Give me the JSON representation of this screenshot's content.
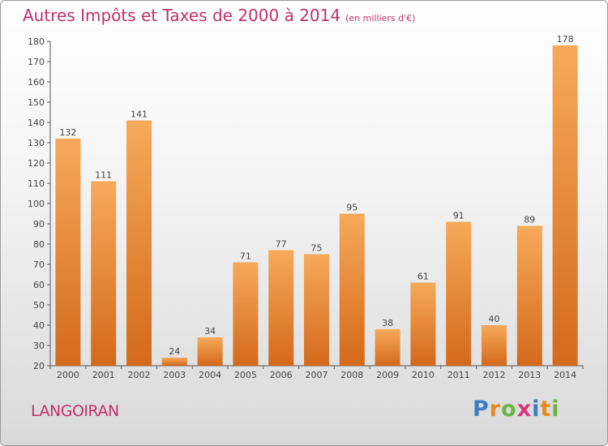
{
  "title": {
    "main": "Autres Impôts et Taxes de 2000 à 2014",
    "unit": "(en milliers d'€)"
  },
  "location": "LANGOIRAN",
  "logo": {
    "letters": [
      "P",
      "r",
      "o",
      "x",
      "i",
      "t",
      "i"
    ],
    "colors": [
      "#3a7fc2",
      "#e58a1f",
      "#6bb43f",
      "#d8327a",
      "#3a7fc2",
      "#e58a1f",
      "#6bb43f"
    ]
  },
  "colors": {
    "bar_light": "#f7a95a",
    "bar_dark": "#d4691a",
    "title": "#c0306b",
    "axis": "#555555"
  },
  "chart_data": {
    "type": "bar",
    "categories": [
      "2000",
      "2001",
      "2002",
      "2003",
      "2004",
      "2005",
      "2006",
      "2007",
      "2008",
      "2009",
      "2010",
      "2011",
      "2012",
      "2013",
      "2014"
    ],
    "values": [
      132,
      111,
      141,
      24,
      34,
      71,
      77,
      75,
      95,
      38,
      61,
      91,
      40,
      89,
      178
    ],
    "ylim": [
      20,
      180
    ],
    "yticks": [
      20,
      30,
      40,
      50,
      60,
      70,
      80,
      90,
      100,
      110,
      120,
      130,
      140,
      150,
      160,
      170,
      180
    ],
    "grid": false,
    "data_labels": true
  }
}
